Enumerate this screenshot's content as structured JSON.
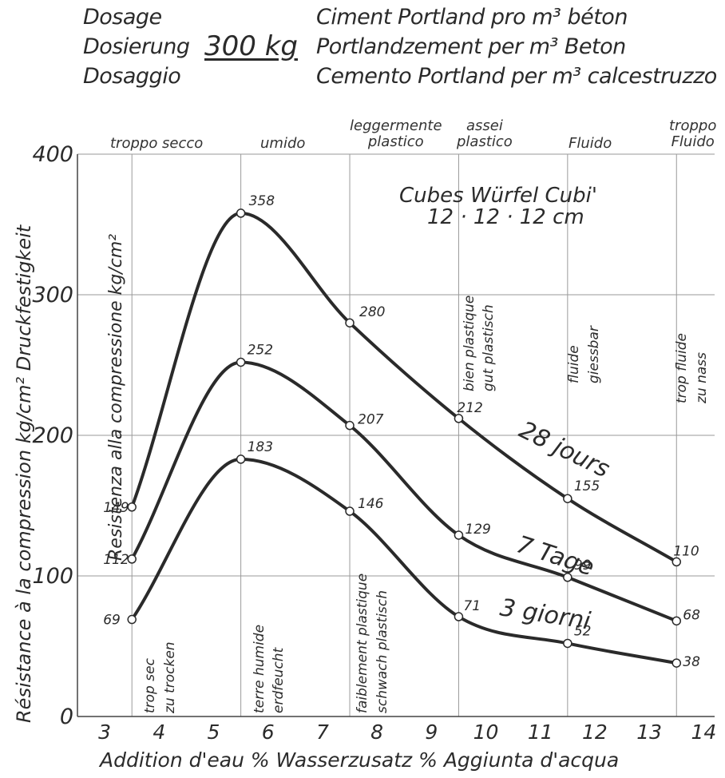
{
  "header": {
    "label_fr": "Dosage",
    "label_de": "Dosierung",
    "label_it": "Dosaggio",
    "amount": "300 kg",
    "text_fr": "Ciment Portland pro m³ béton",
    "text_de": "Portlandzement per m³ Beton",
    "text_it": "Cemento Portland per m³ calcestruzzo"
  },
  "consistency_top": {
    "troppo_secco": "troppo secco",
    "umido": "umido",
    "leggermente_plastico_1": "leggermente",
    "leggermente_plastico_2": "plastico",
    "assai_plastico_1": "assei",
    "assai_plastico_2": "plastico",
    "fluido": "Fluido",
    "troppo_fluido_1": "troppo",
    "troppo_fluido_2": "Fluido"
  },
  "specimen": {
    "line1": "Cubes  Würfel  Cubi'",
    "line2": "12 · 12 · 12 cm"
  },
  "in_chart_labels": {
    "trop_sec": "trop sec",
    "zu_trocken": "zu trocken",
    "terre_humide": "terre humide",
    "erdfeucht": "erdfeucht",
    "faiblement_plastique": "faiblement plastique",
    "schwach_plastisch": "schwach plastisch",
    "bien_plastique": "bien plastique",
    "gut_plastisch": "gut plastisch",
    "fluide": "fluide",
    "giessbar": "giessbar",
    "trop_fluide": "trop fluide",
    "zu_nass": "zu nass"
  },
  "chart_data": {
    "type": "line",
    "xlabel": "Addition d'eau  %   Wasserzusatz  %   Aggiunta d'acqua",
    "ylabel_outer": "Résistance à la compression  kg/cm²  Druckfestigkeit",
    "ylabel_inner": "Resistenza alla compressione  kg/cm²",
    "x_ticks": [
      3,
      4,
      5,
      6,
      7,
      8,
      9,
      10,
      11,
      12,
      13,
      14
    ],
    "y_ticks": [
      0,
      100,
      200,
      300,
      400
    ],
    "xlim": [
      2.5,
      14.2
    ],
    "ylim": [
      0,
      400
    ],
    "grid": true,
    "x": [
      3.5,
      5.5,
      7.5,
      9.5,
      11.5,
      13.5
    ],
    "series": [
      {
        "name": "28 jours",
        "values": [
          149,
          358,
          280,
          212,
          155,
          110
        ],
        "labels": [
          "149",
          "358",
          "280",
          "212",
          "155",
          "110"
        ]
      },
      {
        "name": "7 Tage",
        "values": [
          112,
          252,
          207,
          129,
          99,
          68
        ],
        "labels": [
          "112",
          "252",
          "207",
          "129",
          "99",
          "68"
        ]
      },
      {
        "name": "3 giorni",
        "values": [
          69,
          183,
          146,
          71,
          52,
          38
        ],
        "labels": [
          "69",
          "183",
          "146",
          "71",
          "52",
          "38"
        ]
      }
    ],
    "colors": {
      "line": "#2a2a2a",
      "grid": "#9a9a9a",
      "marker_fill": "#ffffff"
    }
  }
}
